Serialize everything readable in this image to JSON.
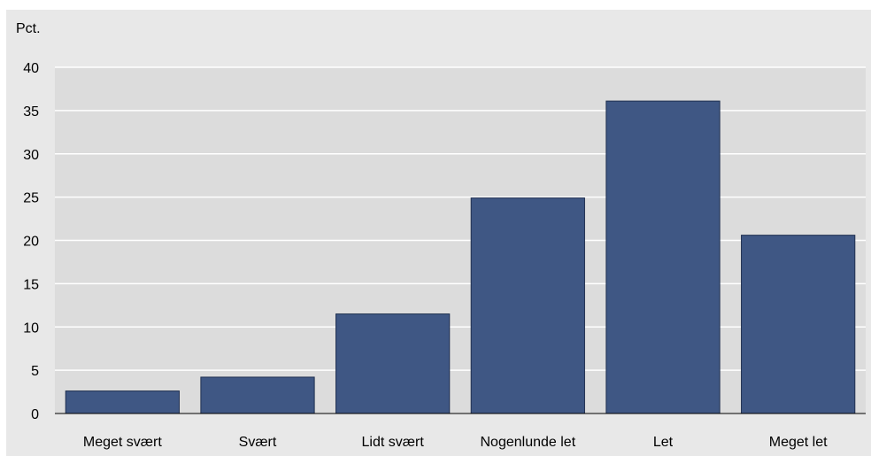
{
  "chart_data": {
    "type": "bar",
    "ylabel": "Pct.",
    "categories": [
      "Meget svært",
      "Svært",
      "Lidt svært",
      "Nogenlunde let",
      "Let",
      "Meget let"
    ],
    "values": [
      2.6,
      4.2,
      11.5,
      24.9,
      36.1,
      20.6
    ],
    "yticks": [
      "0",
      "5",
      "10",
      "15",
      "20",
      "25",
      "30",
      "35",
      "40"
    ],
    "ylim": [
      0,
      40
    ],
    "grid": true,
    "bar_color": "#3f5784",
    "plot_background": "#dcdcdc",
    "frame_background": "#e8e8e8"
  }
}
